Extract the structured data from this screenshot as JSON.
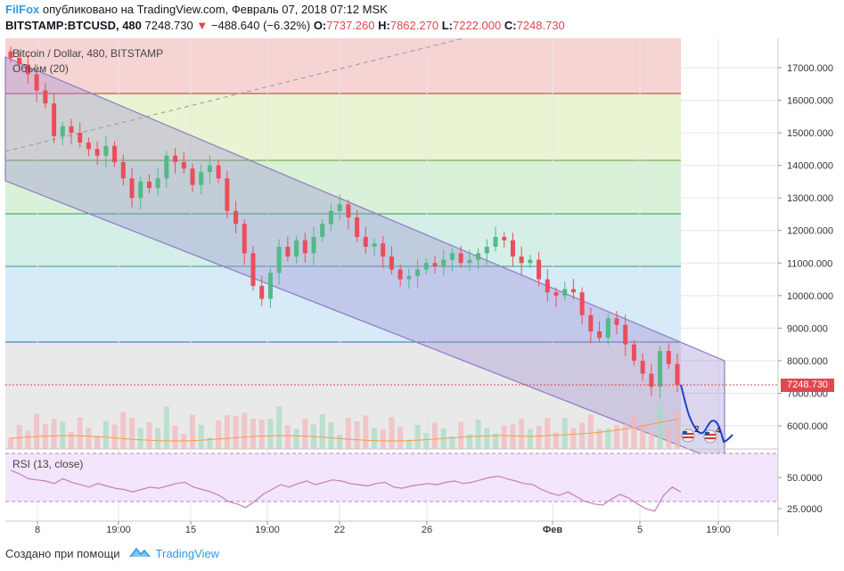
{
  "header": {
    "brand": "FilFox",
    "published": "опубликовано на TradingView.com, Февраль 07, 2018 07:12 MSK",
    "symbol": "BITSTAMP:BTCUSD, 480",
    "last": "7248.730",
    "change": "−488.640 (−6.32%)",
    "o_label": "O:",
    "o_value": "7737.260",
    "h_label": "H:",
    "h_value": "7862.270",
    "l_label": "L:",
    "l_value": "7222.000",
    "c_label": "C:",
    "c_value": "7248.730"
  },
  "legend": {
    "title": "Bitcoin / Dollar, 480, BITSTAMP",
    "volume": "Объём (20)",
    "rsi": "RSI (13, close)"
  },
  "price_tag": "7248.730",
  "price_axis": [
    "17000.000",
    "16000.000",
    "15000.000",
    "14000.000",
    "13000.000",
    "12000.000",
    "11000.000",
    "10000.000",
    "9000.000",
    "8000.000",
    "7000.000",
    "6000.000"
  ],
  "rsi_axis": [
    "50.0000",
    "25.0000"
  ],
  "time_axis": [
    "8",
    "19:00",
    "15",
    "19:00",
    "22",
    "26",
    "Фев",
    "5",
    "19:00"
  ],
  "markers": [
    "2",
    "4"
  ],
  "footer": {
    "created_with": "Создано при помощи",
    "tv": "TradingView"
  },
  "colors": {
    "up": "#53b987",
    "down": "#eb4d5c",
    "channel": "#8e7cc3",
    "rsi": "#c67cc2",
    "accent": "#2e9ae0"
  },
  "chart_data": {
    "type": "candlestick",
    "title": "Bitcoin / Dollar, 480, BITSTAMP",
    "ylim": [
      5400,
      17800
    ],
    "closes": [
      17300,
      17100,
      16800,
      16300,
      15900,
      14900,
      15200,
      15000,
      14700,
      14500,
      14300,
      14600,
      14100,
      13600,
      13000,
      13500,
      13300,
      13600,
      14300,
      14100,
      13900,
      13400,
      13800,
      14000,
      13600,
      12600,
      12200,
      11300,
      10300,
      9900,
      10700,
      11500,
      11200,
      11700,
      11300,
      11800,
      12200,
      12600,
      12800,
      12400,
      11800,
      11500,
      11600,
      11200,
      10800,
      10500,
      10600,
      10800,
      11000,
      10900,
      11100,
      11300,
      11000,
      11100,
      11300,
      11500,
      11800,
      11700,
      11200,
      11000,
      11100,
      10500,
      10100,
      10000,
      10200,
      10100,
      9400,
      8900,
      8700,
      9300,
      9100,
      8500,
      8000,
      7600,
      7200,
      8300,
      7900,
      7250
    ],
    "rsi": [
      56,
      53,
      49,
      48,
      47,
      45,
      49,
      46,
      44,
      42,
      45,
      43,
      41,
      40,
      38,
      40,
      42,
      41,
      43,
      45,
      46,
      42,
      40,
      38,
      35,
      30,
      28,
      25,
      30,
      36,
      40,
      44,
      42,
      45,
      47,
      44,
      46,
      48,
      47,
      45,
      44,
      43,
      45,
      46,
      42,
      41,
      43,
      44,
      45,
      44,
      46,
      47,
      45,
      46,
      48,
      50,
      51,
      49,
      47,
      45,
      44,
      40,
      37,
      35,
      38,
      34,
      30,
      28,
      27,
      32,
      36,
      33,
      28,
      24,
      22,
      35,
      42,
      38
    ]
  }
}
